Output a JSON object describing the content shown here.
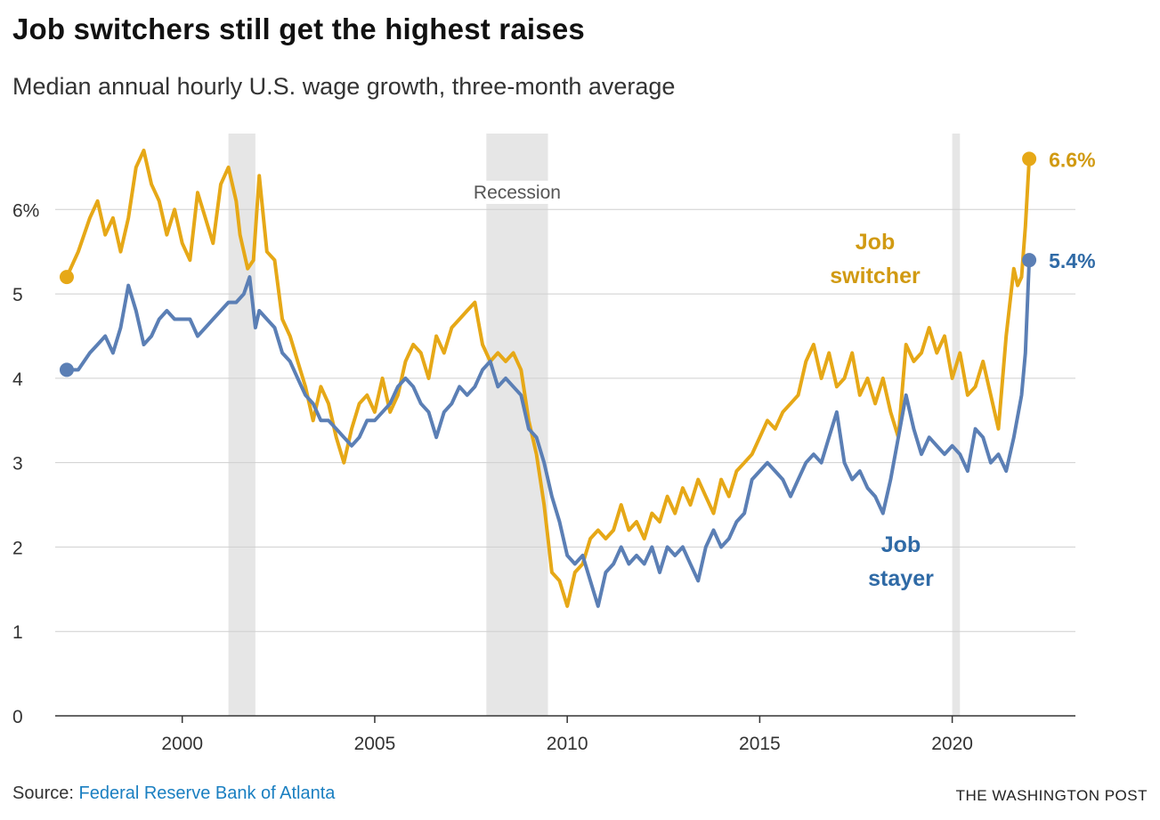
{
  "header": {
    "title": "Job switchers still get the highest raises",
    "subtitle": "Median annual hourly U.S. wage growth, three-month average"
  },
  "footer": {
    "source_prefix": "Source: ",
    "source_link": "Federal Reserve Bank of Atlanta",
    "credit": "THE WASHINGTON POST"
  },
  "colors": {
    "switcher": "#e6a817",
    "stayer": "#5b7fb5",
    "switcher_label": "#d19a12",
    "stayer_label": "#2f6aa6",
    "recession": "#e6e6e6",
    "grid": "#cfcfcf"
  },
  "chart_data": {
    "type": "line",
    "x_axis": {
      "range": [
        1996.7,
        2023.2
      ],
      "ticks": [
        2000,
        2005,
        2010,
        2015,
        2020
      ],
      "tick_labels": [
        "2000",
        "2005",
        "2010",
        "2015",
        "2020"
      ]
    },
    "y_axis": {
      "range": [
        0,
        6.9
      ],
      "ticks": [
        0,
        1,
        2,
        3,
        4,
        5,
        6
      ],
      "tick_labels": [
        "0",
        "1",
        "2",
        "3",
        "4",
        "5",
        "6%"
      ]
    },
    "grid": true,
    "recessions": [
      {
        "start": 2001.2,
        "end": 2001.9,
        "label": ""
      },
      {
        "start": 2007.9,
        "end": 2009.5,
        "label": "Recession"
      },
      {
        "start": 2020.0,
        "end": 2020.2,
        "label": ""
      }
    ],
    "series": [
      {
        "name": "Job switcher",
        "name_lines": [
          "Job",
          "switcher"
        ],
        "end_label": "6.6%",
        "points": [
          [
            1997.0,
            5.2
          ],
          [
            1997.3,
            5.5
          ],
          [
            1997.6,
            5.9
          ],
          [
            1997.8,
            6.1
          ],
          [
            1998.0,
            5.7
          ],
          [
            1998.2,
            5.9
          ],
          [
            1998.4,
            5.5
          ],
          [
            1998.6,
            5.9
          ],
          [
            1998.8,
            6.5
          ],
          [
            1999.0,
            6.7
          ],
          [
            1999.2,
            6.3
          ],
          [
            1999.4,
            6.1
          ],
          [
            1999.6,
            5.7
          ],
          [
            1999.8,
            6.0
          ],
          [
            2000.0,
            5.6
          ],
          [
            2000.2,
            5.4
          ],
          [
            2000.4,
            6.2
          ],
          [
            2000.6,
            5.9
          ],
          [
            2000.8,
            5.6
          ],
          [
            2001.0,
            6.3
          ],
          [
            2001.2,
            6.5
          ],
          [
            2001.4,
            6.1
          ],
          [
            2001.5,
            5.7
          ],
          [
            2001.7,
            5.3
          ],
          [
            2001.85,
            5.4
          ],
          [
            2002.0,
            6.4
          ],
          [
            2002.2,
            5.5
          ],
          [
            2002.4,
            5.4
          ],
          [
            2002.6,
            4.7
          ],
          [
            2002.8,
            4.5
          ],
          [
            2003.0,
            4.2
          ],
          [
            2003.2,
            3.9
          ],
          [
            2003.4,
            3.5
          ],
          [
            2003.6,
            3.9
          ],
          [
            2003.8,
            3.7
          ],
          [
            2004.0,
            3.3
          ],
          [
            2004.2,
            3.0
          ],
          [
            2004.4,
            3.4
          ],
          [
            2004.6,
            3.7
          ],
          [
            2004.8,
            3.8
          ],
          [
            2005.0,
            3.6
          ],
          [
            2005.2,
            4.0
          ],
          [
            2005.4,
            3.6
          ],
          [
            2005.6,
            3.8
          ],
          [
            2005.8,
            4.2
          ],
          [
            2006.0,
            4.4
          ],
          [
            2006.2,
            4.3
          ],
          [
            2006.4,
            4.0
          ],
          [
            2006.6,
            4.5
          ],
          [
            2006.8,
            4.3
          ],
          [
            2007.0,
            4.6
          ],
          [
            2007.2,
            4.7
          ],
          [
            2007.4,
            4.8
          ],
          [
            2007.6,
            4.9
          ],
          [
            2007.8,
            4.4
          ],
          [
            2008.0,
            4.2
          ],
          [
            2008.2,
            4.3
          ],
          [
            2008.4,
            4.2
          ],
          [
            2008.6,
            4.3
          ],
          [
            2008.8,
            4.1
          ],
          [
            2009.0,
            3.5
          ],
          [
            2009.2,
            3.1
          ],
          [
            2009.4,
            2.5
          ],
          [
            2009.6,
            1.7
          ],
          [
            2009.8,
            1.6
          ],
          [
            2010.0,
            1.3
          ],
          [
            2010.2,
            1.7
          ],
          [
            2010.4,
            1.8
          ],
          [
            2010.6,
            2.1
          ],
          [
            2010.8,
            2.2
          ],
          [
            2011.0,
            2.1
          ],
          [
            2011.2,
            2.2
          ],
          [
            2011.4,
            2.5
          ],
          [
            2011.6,
            2.2
          ],
          [
            2011.8,
            2.3
          ],
          [
            2012.0,
            2.1
          ],
          [
            2012.2,
            2.4
          ],
          [
            2012.4,
            2.3
          ],
          [
            2012.6,
            2.6
          ],
          [
            2012.8,
            2.4
          ],
          [
            2013.0,
            2.7
          ],
          [
            2013.2,
            2.5
          ],
          [
            2013.4,
            2.8
          ],
          [
            2013.6,
            2.6
          ],
          [
            2013.8,
            2.4
          ],
          [
            2014.0,
            2.8
          ],
          [
            2014.2,
            2.6
          ],
          [
            2014.4,
            2.9
          ],
          [
            2014.6,
            3.0
          ],
          [
            2014.8,
            3.1
          ],
          [
            2015.0,
            3.3
          ],
          [
            2015.2,
            3.5
          ],
          [
            2015.4,
            3.4
          ],
          [
            2015.6,
            3.6
          ],
          [
            2015.8,
            3.7
          ],
          [
            2016.0,
            3.8
          ],
          [
            2016.2,
            4.2
          ],
          [
            2016.4,
            4.4
          ],
          [
            2016.6,
            4.0
          ],
          [
            2016.8,
            4.3
          ],
          [
            2017.0,
            3.9
          ],
          [
            2017.2,
            4.0
          ],
          [
            2017.4,
            4.3
          ],
          [
            2017.6,
            3.8
          ],
          [
            2017.8,
            4.0
          ],
          [
            2018.0,
            3.7
          ],
          [
            2018.2,
            4.0
          ],
          [
            2018.4,
            3.6
          ],
          [
            2018.6,
            3.3
          ],
          [
            2018.8,
            4.4
          ],
          [
            2019.0,
            4.2
          ],
          [
            2019.2,
            4.3
          ],
          [
            2019.4,
            4.6
          ],
          [
            2019.6,
            4.3
          ],
          [
            2019.8,
            4.5
          ],
          [
            2020.0,
            4.0
          ],
          [
            2020.2,
            4.3
          ],
          [
            2020.4,
            3.8
          ],
          [
            2020.6,
            3.9
          ],
          [
            2020.8,
            4.2
          ],
          [
            2021.0,
            3.8
          ],
          [
            2021.2,
            3.4
          ],
          [
            2021.4,
            4.5
          ],
          [
            2021.6,
            5.3
          ],
          [
            2021.7,
            5.1
          ],
          [
            2021.8,
            5.2
          ],
          [
            2021.9,
            5.8
          ],
          [
            2022.0,
            6.6
          ]
        ]
      },
      {
        "name": "Job stayer",
        "name_lines": [
          "Job",
          "stayer"
        ],
        "end_label": "5.4%",
        "points": [
          [
            1997.0,
            4.1
          ],
          [
            1997.3,
            4.1
          ],
          [
            1997.6,
            4.3
          ],
          [
            1997.8,
            4.4
          ],
          [
            1998.0,
            4.5
          ],
          [
            1998.2,
            4.3
          ],
          [
            1998.4,
            4.6
          ],
          [
            1998.6,
            5.1
          ],
          [
            1998.8,
            4.8
          ],
          [
            1999.0,
            4.4
          ],
          [
            1999.2,
            4.5
          ],
          [
            1999.4,
            4.7
          ],
          [
            1999.6,
            4.8
          ],
          [
            1999.8,
            4.7
          ],
          [
            2000.0,
            4.7
          ],
          [
            2000.2,
            4.7
          ],
          [
            2000.4,
            4.5
          ],
          [
            2000.6,
            4.6
          ],
          [
            2000.8,
            4.7
          ],
          [
            2001.0,
            4.8
          ],
          [
            2001.2,
            4.9
          ],
          [
            2001.4,
            4.9
          ],
          [
            2001.6,
            5.0
          ],
          [
            2001.75,
            5.2
          ],
          [
            2001.9,
            4.6
          ],
          [
            2002.0,
            4.8
          ],
          [
            2002.2,
            4.7
          ],
          [
            2002.4,
            4.6
          ],
          [
            2002.6,
            4.3
          ],
          [
            2002.8,
            4.2
          ],
          [
            2003.0,
            4.0
          ],
          [
            2003.2,
            3.8
          ],
          [
            2003.4,
            3.7
          ],
          [
            2003.6,
            3.5
          ],
          [
            2003.8,
            3.5
          ],
          [
            2004.0,
            3.4
          ],
          [
            2004.2,
            3.3
          ],
          [
            2004.4,
            3.2
          ],
          [
            2004.6,
            3.3
          ],
          [
            2004.8,
            3.5
          ],
          [
            2005.0,
            3.5
          ],
          [
            2005.2,
            3.6
          ],
          [
            2005.4,
            3.7
          ],
          [
            2005.6,
            3.9
          ],
          [
            2005.8,
            4.0
          ],
          [
            2006.0,
            3.9
          ],
          [
            2006.2,
            3.7
          ],
          [
            2006.4,
            3.6
          ],
          [
            2006.6,
            3.3
          ],
          [
            2006.8,
            3.6
          ],
          [
            2007.0,
            3.7
          ],
          [
            2007.2,
            3.9
          ],
          [
            2007.4,
            3.8
          ],
          [
            2007.6,
            3.9
          ],
          [
            2007.8,
            4.1
          ],
          [
            2008.0,
            4.2
          ],
          [
            2008.2,
            3.9
          ],
          [
            2008.4,
            4.0
          ],
          [
            2008.6,
            3.9
          ],
          [
            2008.8,
            3.8
          ],
          [
            2009.0,
            3.4
          ],
          [
            2009.2,
            3.3
          ],
          [
            2009.4,
            3.0
          ],
          [
            2009.6,
            2.6
          ],
          [
            2009.8,
            2.3
          ],
          [
            2010.0,
            1.9
          ],
          [
            2010.2,
            1.8
          ],
          [
            2010.4,
            1.9
          ],
          [
            2010.6,
            1.6
          ],
          [
            2010.8,
            1.3
          ],
          [
            2011.0,
            1.7
          ],
          [
            2011.2,
            1.8
          ],
          [
            2011.4,
            2.0
          ],
          [
            2011.6,
            1.8
          ],
          [
            2011.8,
            1.9
          ],
          [
            2012.0,
            1.8
          ],
          [
            2012.2,
            2.0
          ],
          [
            2012.4,
            1.7
          ],
          [
            2012.6,
            2.0
          ],
          [
            2012.8,
            1.9
          ],
          [
            2013.0,
            2.0
          ],
          [
            2013.2,
            1.8
          ],
          [
            2013.4,
            1.6
          ],
          [
            2013.6,
            2.0
          ],
          [
            2013.8,
            2.2
          ],
          [
            2014.0,
            2.0
          ],
          [
            2014.2,
            2.1
          ],
          [
            2014.4,
            2.3
          ],
          [
            2014.6,
            2.4
          ],
          [
            2014.8,
            2.8
          ],
          [
            2015.0,
            2.9
          ],
          [
            2015.2,
            3.0
          ],
          [
            2015.4,
            2.9
          ],
          [
            2015.6,
            2.8
          ],
          [
            2015.8,
            2.6
          ],
          [
            2016.0,
            2.8
          ],
          [
            2016.2,
            3.0
          ],
          [
            2016.4,
            3.1
          ],
          [
            2016.6,
            3.0
          ],
          [
            2016.8,
            3.3
          ],
          [
            2017.0,
            3.6
          ],
          [
            2017.2,
            3.0
          ],
          [
            2017.4,
            2.8
          ],
          [
            2017.6,
            2.9
          ],
          [
            2017.8,
            2.7
          ],
          [
            2018.0,
            2.6
          ],
          [
            2018.2,
            2.4
          ],
          [
            2018.4,
            2.8
          ],
          [
            2018.6,
            3.3
          ],
          [
            2018.8,
            3.8
          ],
          [
            2019.0,
            3.4
          ],
          [
            2019.2,
            3.1
          ],
          [
            2019.4,
            3.3
          ],
          [
            2019.6,
            3.2
          ],
          [
            2019.8,
            3.1
          ],
          [
            2020.0,
            3.2
          ],
          [
            2020.2,
            3.1
          ],
          [
            2020.4,
            2.9
          ],
          [
            2020.6,
            3.4
          ],
          [
            2020.8,
            3.3
          ],
          [
            2021.0,
            3.0
          ],
          [
            2021.2,
            3.1
          ],
          [
            2021.4,
            2.9
          ],
          [
            2021.6,
            3.3
          ],
          [
            2021.8,
            3.8
          ],
          [
            2021.9,
            4.3
          ],
          [
            2022.0,
            5.4
          ]
        ]
      }
    ]
  }
}
